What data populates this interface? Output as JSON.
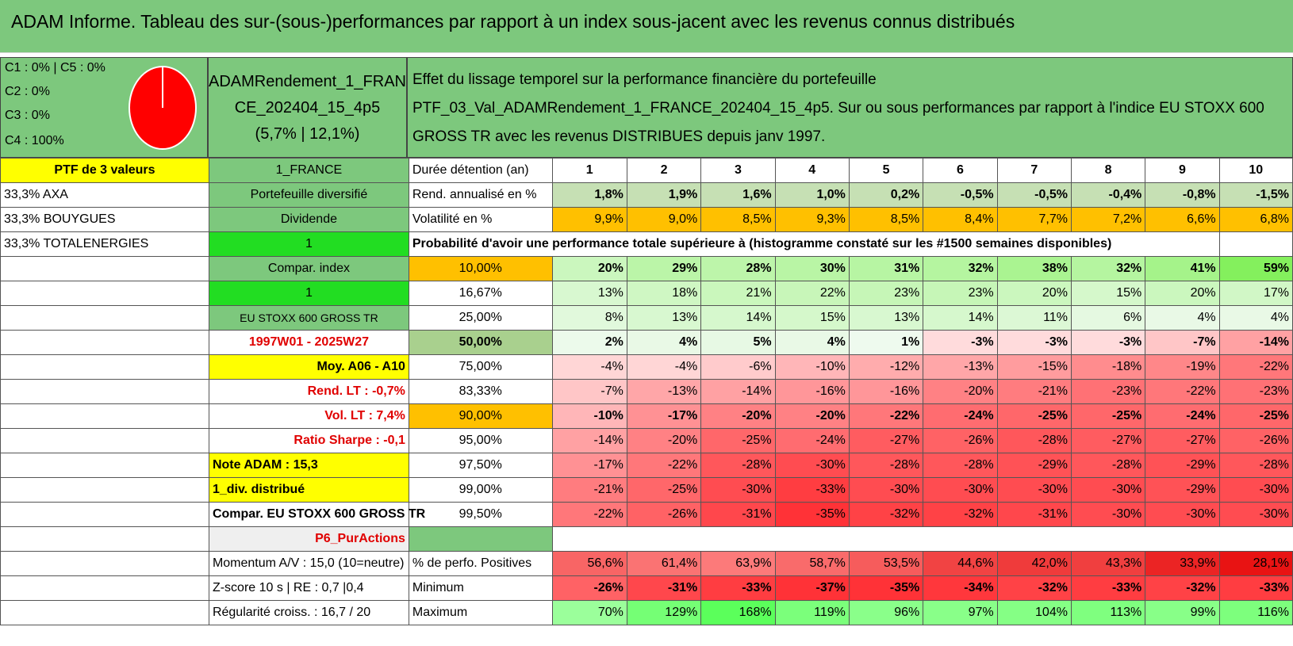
{
  "title": "ADAM Informe. Tableau des sur-(sous-)performances par rapport à un index sous-jacent avec les revenus connus distribués",
  "legend": {
    "l1": "C1 : 0% | C5 : 0%",
    "l2": "C2 : 0%",
    "l3": "C3 : 0%",
    "l4": "C4 : 100%"
  },
  "pie": {
    "segments": [
      {
        "name": "C4",
        "fraction": 1.0,
        "color": "#ff0000"
      }
    ]
  },
  "portfolio": {
    "name1": "ADAMRendement_1_FRAN",
    "name2": "CE_202404_15_4p5",
    "name3": "(5,7% | 12,1%)"
  },
  "effect": {
    "line1": "Effet du lissage temporel sur la performance financière du portefeuille",
    "line2": "PTF_03_Val_ADAMRendement_1_FRANCE_202404_15_4p5. Sur ou sous performances par rapport à l'indice EU STOXX 600",
    "line3": "GROSS TR avec les revenus DISTRIBUES depuis janv 1997."
  },
  "left_col": [
    "PTF de 3 valeurs",
    "33,3% AXA",
    "33,3% BOUYGUES",
    "33,3% TOTALENERGIES"
  ],
  "mid_col": [
    "1_FRANCE",
    "Portefeuille diversifié",
    "Dividende",
    "1",
    "Compar. index",
    "1",
    "EU STOXX 600 GROSS TR",
    "1997W01 - 2025W27",
    "Moy. A06 - A10",
    "Rend. LT : -0,7%",
    "Vol. LT : 7,4%",
    "Ratio Sharpe : -0,1",
    "Note ADAM : 15,3",
    "1_div. distribué",
    "Compar. EU STOXX 600 GROSS TR",
    "P6_PurActions",
    "Momentum A/V : 15,0 (10=neutre)",
    "Z-score 10 s | RE : 0,7 |0,4",
    "Régularité croiss. : 16,7 / 20"
  ],
  "header": {
    "label": "Durée détention (an)",
    "years": [
      "1",
      "2",
      "3",
      "4",
      "5",
      "6",
      "7",
      "8",
      "9",
      "10"
    ]
  },
  "rend": {
    "label": "Rend. annualisé en %",
    "values": [
      "1,8%",
      "1,9%",
      "1,6%",
      "1,0%",
      "0,2%",
      "-0,5%",
      "-0,5%",
      "-0,4%",
      "-0,8%",
      "-1,5%"
    ]
  },
  "vol": {
    "label": "Volatilité en %",
    "values": [
      "9,9%",
      "9,0%",
      "8,5%",
      "9,3%",
      "8,5%",
      "8,4%",
      "7,7%",
      "7,2%",
      "6,6%",
      "6,8%"
    ]
  },
  "prob_title": "Probabilité d'avoir une performance totale supérieure à (histogramme constaté sur les #1500 semaines disponibles)",
  "quantiles": [
    {
      "q": "10,00%",
      "values": [
        "20%",
        "29%",
        "28%",
        "30%",
        "31%",
        "32%",
        "38%",
        "32%",
        "41%",
        "59%"
      ]
    },
    {
      "q": "16,67%",
      "values": [
        "13%",
        "18%",
        "21%",
        "22%",
        "23%",
        "23%",
        "20%",
        "15%",
        "20%",
        "17%"
      ]
    },
    {
      "q": "25,00%",
      "values": [
        "8%",
        "13%",
        "14%",
        "15%",
        "13%",
        "14%",
        "11%",
        "6%",
        "4%",
        "4%"
      ]
    },
    {
      "q": "50,00%",
      "values": [
        "2%",
        "4%",
        "5%",
        "4%",
        "1%",
        "-3%",
        "-3%",
        "-3%",
        "-7%",
        "-14%"
      ]
    },
    {
      "q": "75,00%",
      "values": [
        "-4%",
        "-4%",
        "-6%",
        "-10%",
        "-12%",
        "-13%",
        "-15%",
        "-18%",
        "-19%",
        "-22%"
      ]
    },
    {
      "q": "83,33%",
      "values": [
        "-7%",
        "-13%",
        "-14%",
        "-16%",
        "-16%",
        "-20%",
        "-21%",
        "-23%",
        "-22%",
        "-23%"
      ]
    },
    {
      "q": "90,00%",
      "values": [
        "-10%",
        "-17%",
        "-20%",
        "-20%",
        "-22%",
        "-24%",
        "-25%",
        "-25%",
        "-24%",
        "-25%"
      ]
    },
    {
      "q": "95,00%",
      "values": [
        "-14%",
        "-20%",
        "-25%",
        "-24%",
        "-27%",
        "-26%",
        "-28%",
        "-27%",
        "-27%",
        "-26%"
      ]
    },
    {
      "q": "97,50%",
      "values": [
        "-17%",
        "-22%",
        "-28%",
        "-30%",
        "-28%",
        "-28%",
        "-29%",
        "-28%",
        "-29%",
        "-28%"
      ]
    },
    {
      "q": "99,00%",
      "values": [
        "-21%",
        "-25%",
        "-30%",
        "-33%",
        "-30%",
        "-30%",
        "-30%",
        "-30%",
        "-29%",
        "-30%"
      ]
    },
    {
      "q": "99,50%",
      "values": [
        "-22%",
        "-26%",
        "-31%",
        "-35%",
        "-32%",
        "-32%",
        "-31%",
        "-30%",
        "-30%",
        "-30%"
      ]
    }
  ],
  "pos": {
    "label": "% de perfo. Positives",
    "values": [
      "56,6%",
      "61,4%",
      "63,9%",
      "58,7%",
      "53,5%",
      "44,6%",
      "42,0%",
      "43,3%",
      "33,9%",
      "28,1%"
    ]
  },
  "min": {
    "label": "Minimum",
    "values": [
      "-26%",
      "-31%",
      "-33%",
      "-37%",
      "-35%",
      "-34%",
      "-32%",
      "-33%",
      "-32%",
      "-33%"
    ]
  },
  "max": {
    "label": "Maximum",
    "values": [
      "70%",
      "129%",
      "168%",
      "119%",
      "96%",
      "97%",
      "104%",
      "113%",
      "99%",
      "116%"
    ]
  },
  "colors": {
    "title_green": "#7dc87d",
    "yellow": "#ffff00",
    "lime": "#22dd22",
    "orange": "#ffc000",
    "red_text": "#e00000"
  }
}
